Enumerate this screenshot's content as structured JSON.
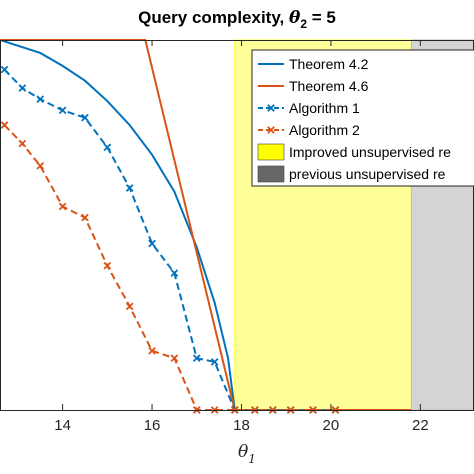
{
  "chart_data": {
    "type": "line",
    "title": "Query complexity, θ₂ = 5",
    "title_parts": {
      "prefix": "Query complexity, ",
      "symbol": "θ",
      "subscript": "2",
      "suffix": " = 5"
    },
    "xlabel": {
      "symbol": "θ",
      "subscript": "1"
    },
    "ylabel": "",
    "xlim": [
      12.6,
      23.2
    ],
    "ylim": [
      0,
      1
    ],
    "x_ticks": [
      14,
      16,
      18,
      20,
      22
    ],
    "x_tick_labels": [
      "14",
      "16",
      "18",
      "20",
      "22"
    ],
    "grid": false,
    "legend_position": "top-right",
    "regions": [
      {
        "name": "Improved unsupervised re",
        "x": [
          17.85,
          21.8
        ],
        "color": "#ffff99",
        "edge": "#ffff33"
      },
      {
        "name": "previous unsupervised re",
        "x": [
          21.8,
          23.2
        ],
        "color": "#d4d4d4",
        "edge": "#bdbdbd"
      }
    ],
    "series": [
      {
        "name": "Theorem 4.2",
        "color": "#0072bd",
        "style": "solid",
        "marker": "none",
        "x": [
          12.6,
          13.5,
          14.0,
          14.5,
          15.0,
          15.5,
          16.0,
          16.5,
          17.0,
          17.4,
          17.7,
          17.85
        ],
        "y": [
          1.0,
          0.965,
          0.93,
          0.89,
          0.835,
          0.77,
          0.69,
          0.59,
          0.44,
          0.29,
          0.14,
          0.0
        ]
      },
      {
        "name": "Theorem 4.6",
        "color": "#d95319",
        "style": "solid",
        "marker": "none",
        "x": [
          12.6,
          15.85,
          17.85,
          21.8
        ],
        "y": [
          1.0,
          1.0,
          0.0,
          0.0
        ]
      },
      {
        "name": "Algorithm 1",
        "color": "#0072bd",
        "style": "dashed",
        "marker": "x",
        "x": [
          12.7,
          13.1,
          13.5,
          14.0,
          14.5,
          15.0,
          15.5,
          16.0,
          16.5,
          17.0,
          17.4,
          17.85,
          18.3,
          18.7,
          19.1,
          19.6,
          20.1
        ],
        "y": [
          0.92,
          0.87,
          0.84,
          0.81,
          0.79,
          0.71,
          0.6,
          0.45,
          0.37,
          0.14,
          0.13,
          0.0,
          0.0,
          0.0,
          0.0,
          0.0,
          0.0
        ]
      },
      {
        "name": "Algorithm 2",
        "color": "#d95319",
        "style": "dashed",
        "marker": "x",
        "x": [
          12.7,
          13.1,
          13.5,
          14.0,
          14.5,
          15.0,
          15.5,
          16.0,
          16.5,
          17.0,
          17.4,
          17.85,
          18.3,
          18.7,
          19.1,
          19.6,
          20.1
        ],
        "y": [
          0.77,
          0.72,
          0.66,
          0.55,
          0.52,
          0.39,
          0.28,
          0.16,
          0.14,
          0.0,
          0.0,
          0.0,
          0.0,
          0.0,
          0.0,
          0.0,
          0.0
        ]
      }
    ]
  }
}
